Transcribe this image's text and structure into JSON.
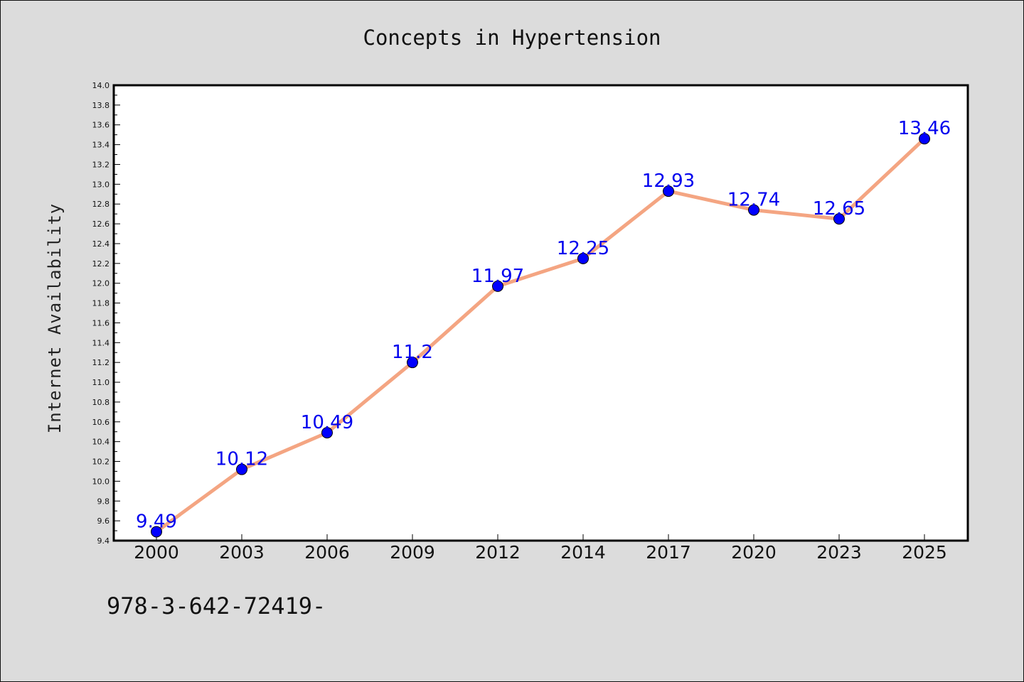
{
  "chart_data": {
    "type": "line",
    "title": "Concepts in Hypertension",
    "xlabel": "",
    "ylabel": "Internet Availability",
    "categories": [
      "2000",
      "2003",
      "2006",
      "2009",
      "2012",
      "2014",
      "2017",
      "2020",
      "2023",
      "2025"
    ],
    "values": [
      9.49,
      10.12,
      10.49,
      11.2,
      11.97,
      12.25,
      12.93,
      12.74,
      12.65,
      13.46
    ],
    "data_labels": [
      "9.49",
      "10.12",
      "10.49",
      "11.2",
      "11.97",
      "12.25",
      "12.93",
      "12.74",
      "12.65",
      "13.46"
    ],
    "ylim": [
      9.4,
      14.0
    ],
    "ytick_step": 0.2,
    "grid": false,
    "line_color": "#f4a582",
    "marker_color": "#0000ff",
    "label_color": "#0000ee"
  },
  "footer": {
    "isbn": "978-3-642-72419-"
  }
}
